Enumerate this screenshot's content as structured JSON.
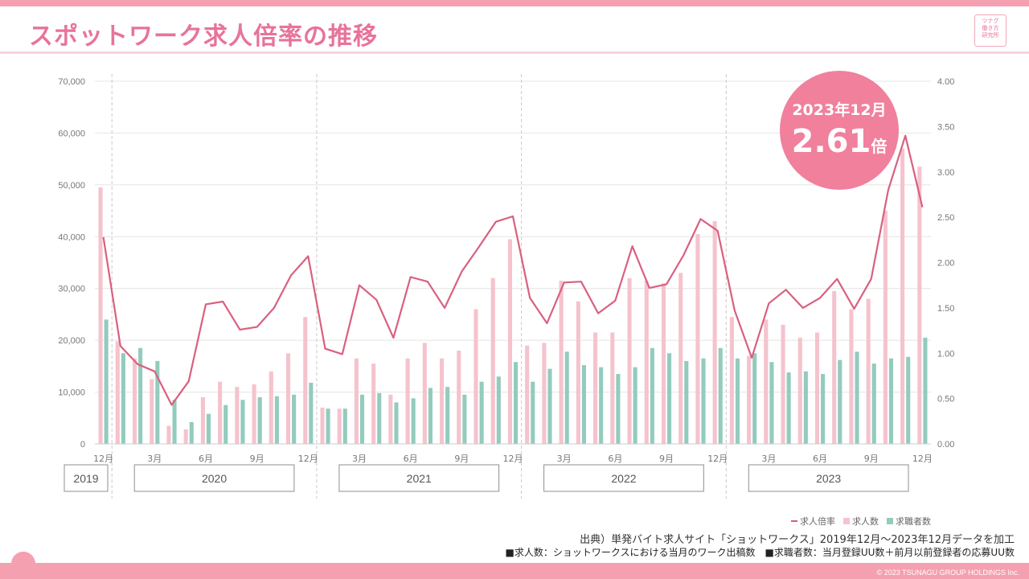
{
  "header": {
    "title": "スポットワーク求人倍率の推移",
    "logo_lines": [
      "ツナグ",
      "働き方",
      "研究所"
    ]
  },
  "callout": {
    "date_prefix": "2023年",
    "date_month": "12",
    "date_suffix": "月",
    "value": "2.61",
    "unit": "倍"
  },
  "footer": {
    "source": "出典）単発バイト求人サイト「ショットワークス」2019年12月～2023年12月データを加工",
    "note1": "■求人数：ショットワークスにおける当月のワーク出稿数",
    "note2": "■求職者数：当月登録UU数＋前月以前登録者の応募UU数",
    "copyright": "© 2023 TSUNAGU GROUP HOLDINGS Inc."
  },
  "colors": {
    "accent": "#e8739a",
    "jobs_bar": "#f5c3cd",
    "seekers_bar": "#93cbbd",
    "ratio_line": "#d9607f"
  },
  "chart_data": {
    "type": "bar",
    "title": "",
    "x_month_labels": [
      "12月",
      "",
      "",
      "3月",
      "",
      "",
      "6月",
      "",
      "",
      "9月",
      "",
      "",
      "12月",
      "",
      "",
      "3月",
      "",
      "",
      "6月",
      "",
      "",
      "9月",
      "",
      "",
      "12月",
      "",
      "",
      "3月",
      "",
      "",
      "6月",
      "",
      "",
      "9月",
      "",
      "",
      "12月",
      "",
      "",
      "3月",
      "",
      "",
      "6月",
      "",
      "",
      "9月",
      "",
      "",
      "12月"
    ],
    "year_labels": [
      "2019",
      "2020",
      "2021",
      "2022",
      "2023"
    ],
    "categories": [
      "2019-12",
      "2020-01",
      "2020-02",
      "2020-03",
      "2020-04",
      "2020-05",
      "2020-06",
      "2020-07",
      "2020-08",
      "2020-09",
      "2020-10",
      "2020-11",
      "2020-12",
      "2021-01",
      "2021-02",
      "2021-03",
      "2021-04",
      "2021-05",
      "2021-06",
      "2021-07",
      "2021-08",
      "2021-09",
      "2021-10",
      "2021-11",
      "2021-12",
      "2022-01",
      "2022-02",
      "2022-03",
      "2022-04",
      "2022-05",
      "2022-06",
      "2022-07",
      "2022-08",
      "2022-09",
      "2022-10",
      "2022-11",
      "2022-12",
      "2023-01",
      "2023-02",
      "2023-03",
      "2023-04",
      "2023-05",
      "2023-06",
      "2023-07",
      "2023-08",
      "2023-09",
      "2023-10",
      "2023-11",
      "2023-12"
    ],
    "y_left_ticks": [
      "0",
      "10,000",
      "20,000",
      "30,000",
      "40,000",
      "50,000",
      "60,000",
      "70,000"
    ],
    "y_right_ticks": [
      "0.00",
      "0.50",
      "1.00",
      "1.50",
      "2.00",
      "2.50",
      "3.00",
      "3.50",
      "4.00"
    ],
    "ylim_left": [
      0,
      70000
    ],
    "ylim_right": [
      0,
      4.0
    ],
    "legend": [
      "求人倍率",
      "求人数",
      "求職者数"
    ],
    "series": [
      {
        "name": "求人数",
        "axis": "left",
        "type": "bar",
        "values": [
          49500,
          19800,
          16500,
          12500,
          3500,
          2800,
          9000,
          12000,
          11000,
          11500,
          14000,
          17500,
          24500,
          7000,
          6800,
          16500,
          15500,
          9500,
          16500,
          19500,
          16500,
          18000,
          26000,
          32000,
          39500,
          19000,
          19500,
          31500,
          27500,
          21500,
          21500,
          32000,
          31500,
          31000,
          33000,
          40500,
          43000,
          24500,
          17000,
          24000,
          23000,
          20500,
          21500,
          29500,
          26000,
          28000,
          45000,
          57000,
          53500
        ]
      },
      {
        "name": "求職者数",
        "axis": "left",
        "type": "bar",
        "values": [
          24000,
          17500,
          18500,
          16000,
          8500,
          4200,
          5800,
          7500,
          8500,
          9000,
          9200,
          9500,
          11800,
          6800,
          6800,
          9500,
          9800,
          8000,
          8800,
          10800,
          11000,
          9500,
          12000,
          13000,
          15800,
          12000,
          14500,
          17800,
          15200,
          14800,
          13500,
          14800,
          18500,
          17500,
          16000,
          16500,
          18500,
          16500,
          17500,
          15800,
          13800,
          14000,
          13500,
          16200,
          17800,
          15500,
          16500,
          16800,
          20500
        ]
      },
      {
        "name": "求人倍率",
        "axis": "right",
        "type": "line",
        "values": [
          2.28,
          1.08,
          0.88,
          0.8,
          0.43,
          0.69,
          1.54,
          1.57,
          1.26,
          1.29,
          1.5,
          1.86,
          2.07,
          1.05,
          0.99,
          1.75,
          1.59,
          1.17,
          1.84,
          1.79,
          1.5,
          1.9,
          2.17,
          2.45,
          2.51,
          1.61,
          1.33,
          1.78,
          1.79,
          1.44,
          1.58,
          2.18,
          1.72,
          1.76,
          2.08,
          2.48,
          2.35,
          1.47,
          0.95,
          1.55,
          1.7,
          1.5,
          1.61,
          1.82,
          1.49,
          1.82,
          2.8,
          3.4,
          2.61
        ]
      }
    ]
  }
}
